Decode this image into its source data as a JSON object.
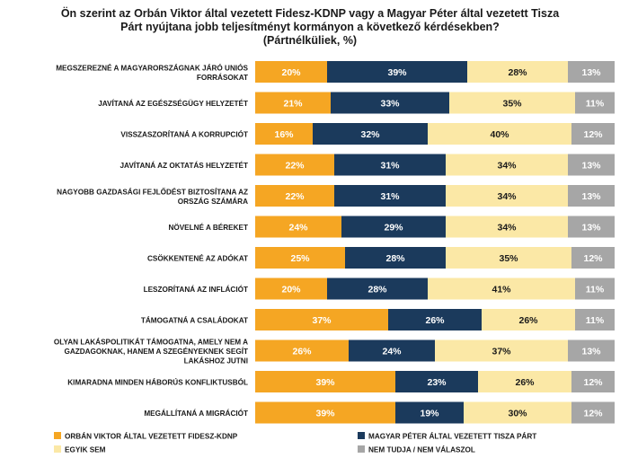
{
  "chart_data": {
    "type": "bar",
    "orientation": "horizontal",
    "stacked": true,
    "title_lines": [
      "Ön szerint az Orbán Viktor által vezetett Fidesz-KDNP vagy a Magyar Péter által vezetett Tisza",
      "Párt nyújtana jobb teljesítményt kormányon a következő kérdésekben?",
      "(Pártnélküliek, %)"
    ],
    "unit": "%",
    "categories": [
      [
        "MEGSZEREZNÉ A MAGYARORSZÁGNAK JÁRÓ UNIÓS",
        "FORRÁSOKAT"
      ],
      [
        "JAVÍTANÁ AZ EGÉSZSÉGÜGY HELYZETÉT"
      ],
      [
        "VISSZASZORÍTANÁ A KORRUPCIÓT"
      ],
      [
        "JAVÍTANÁ AZ OKTATÁS HELYZETÉT"
      ],
      [
        "NAGYOBB GAZDASÁGI FEJLŐDÉST BIZTOSÍTANA AZ",
        "ORSZÁG SZÁMÁRA"
      ],
      [
        "NÖVELNÉ A BÉREKET"
      ],
      [
        "CSÖKKENTENÉ AZ ADÓKAT"
      ],
      [
        "LESZORÍTANÁ AZ INFLÁCIÓT"
      ],
      [
        "TÁMOGATNÁ A CSALÁDOKAT"
      ],
      [
        "OLYAN LAKÁSPOLITIKÁT TÁMOGATNA, AMELY NEM A",
        "GAZDAGOKNAK, HANEM A SZEGÉNYEKNEK SEGÍT",
        "LAKÁSHOZ JUTNI"
      ],
      [
        "KIMARADNA MINDEN HÁBORÚS KONFLIKTUSBÓL"
      ],
      [
        "MEGÁLLÍTANÁ A MIGRÁCIÓT"
      ]
    ],
    "series": [
      {
        "name": "ORBÁN VIKTOR ÁLTAL VEZETETT FIDESZ-KDNP",
        "color": "#F5A623",
        "label_color": "#ffffff",
        "values": [
          20,
          21,
          16,
          22,
          22,
          24,
          25,
          20,
          37,
          26,
          39,
          39
        ]
      },
      {
        "name": "MAGYAR PÉTER ÁLTAL VEZETETT TISZA PÁRT",
        "color": "#1B3A5C",
        "label_color": "#ffffff",
        "values": [
          39,
          33,
          32,
          31,
          31,
          29,
          28,
          28,
          26,
          24,
          23,
          19
        ]
      },
      {
        "name": "EGYIK SEM",
        "color": "#FBE8A6",
        "label_color": "#1a1a1a",
        "values": [
          28,
          35,
          40,
          34,
          34,
          34,
          35,
          41,
          26,
          37,
          26,
          30
        ]
      },
      {
        "name": "NEM TUDJA / NEM VÁLASZOL",
        "color": "#A6A6A6",
        "label_color": "#ffffff",
        "values": [
          13,
          11,
          12,
          13,
          13,
          13,
          12,
          11,
          11,
          13,
          12,
          12
        ]
      }
    ],
    "xlim": [
      0,
      100
    ],
    "legend_position": "bottom"
  }
}
